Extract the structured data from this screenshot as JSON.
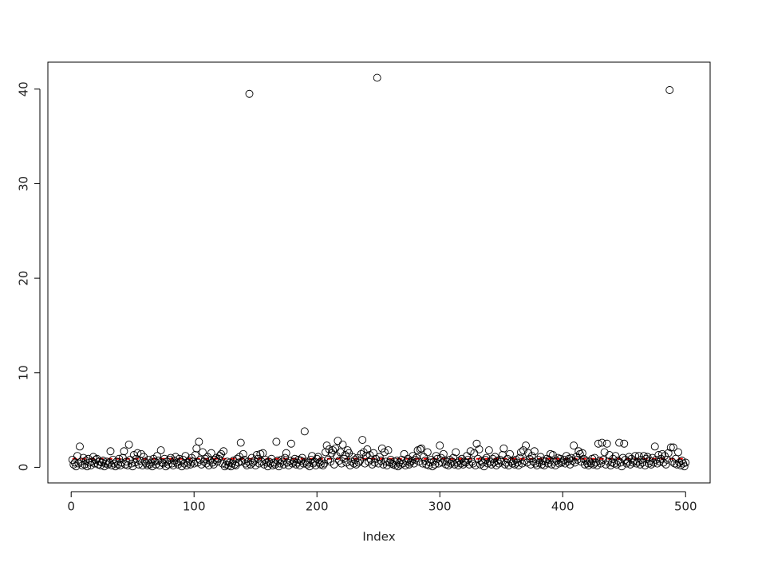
{
  "chart_data": {
    "type": "scatter",
    "x_label": "Index",
    "point_color": "#000000",
    "reference_line": {
      "value": 0.9,
      "color": "#ff0000"
    },
    "xlim": [
      -18.96,
      519.96
    ],
    "xticks": [
      0,
      100,
      200,
      300,
      400,
      500
    ],
    "ylim": [
      -1.65,
      42.85
    ],
    "yticks": [
      0,
      10,
      20,
      30,
      40
    ],
    "x": [
      1,
      2,
      3,
      4,
      5,
      6,
      7,
      8,
      9,
      10,
      11,
      12,
      13,
      14,
      15,
      16,
      17,
      18,
      19,
      20,
      21,
      22,
      23,
      24,
      25,
      26,
      27,
      28,
      29,
      30,
      31,
      32,
      33,
      34,
      35,
      36,
      37,
      38,
      39,
      40,
      41,
      42,
      43,
      44,
      45,
      46,
      47,
      48,
      49,
      50,
      51,
      52,
      53,
      54,
      55,
      56,
      57,
      58,
      59,
      60,
      61,
      62,
      63,
      64,
      65,
      66,
      67,
      68,
      69,
      70,
      71,
      72,
      73,
      74,
      75,
      76,
      77,
      78,
      79,
      80,
      81,
      82,
      83,
      84,
      85,
      86,
      87,
      88,
      89,
      90,
      91,
      92,
      93,
      94,
      95,
      96,
      97,
      98,
      99,
      100,
      101,
      102,
      103,
      104,
      105,
      106,
      107,
      108,
      109,
      110,
      111,
      112,
      113,
      114,
      115,
      116,
      117,
      118,
      119,
      120,
      121,
      122,
      123,
      124,
      125,
      126,
      127,
      128,
      129,
      130,
      131,
      132,
      133,
      134,
      135,
      136,
      137,
      138,
      139,
      140,
      141,
      142,
      143,
      144,
      145,
      146,
      147,
      148,
      149,
      150,
      151,
      152,
      153,
      154,
      155,
      156,
      157,
      158,
      159,
      160,
      161,
      162,
      163,
      164,
      165,
      166,
      167,
      168,
      169,
      170,
      171,
      172,
      173,
      174,
      175,
      176,
      177,
      178,
      179,
      180,
      181,
      182,
      183,
      184,
      185,
      186,
      187,
      188,
      189,
      190,
      191,
      192,
      193,
      194,
      195,
      196,
      197,
      198,
      199,
      200,
      201,
      202,
      203,
      204,
      205,
      206,
      207,
      208,
      209,
      210,
      211,
      212,
      213,
      214,
      215,
      216,
      217,
      218,
      219,
      220,
      221,
      222,
      223,
      224,
      225,
      226,
      227,
      228,
      229,
      230,
      231,
      232,
      233,
      234,
      235,
      236,
      237,
      238,
      239,
      240,
      241,
      242,
      243,
      244,
      245,
      246,
      247,
      248,
      249,
      250,
      251,
      252,
      253,
      254,
      255,
      256,
      257,
      258,
      259,
      260,
      261,
      262,
      263,
      264,
      265,
      266,
      267,
      268,
      269,
      270,
      271,
      272,
      273,
      274,
      275,
      276,
      277,
      278,
      279,
      280,
      281,
      282,
      283,
      284,
      285,
      286,
      287,
      288,
      289,
      290,
      291,
      292,
      293,
      294,
      295,
      296,
      297,
      298,
      299,
      300,
      301,
      302,
      303,
      304,
      305,
      306,
      307,
      308,
      309,
      310,
      311,
      312,
      313,
      314,
      315,
      316,
      317,
      318,
      319,
      320,
      321,
      322,
      323,
      324,
      325,
      326,
      327,
      328,
      329,
      330,
      331,
      332,
      333,
      334,
      335,
      336,
      337,
      338,
      339,
      340,
      341,
      342,
      343,
      344,
      345,
      346,
      347,
      348,
      349,
      350,
      351,
      352,
      353,
      354,
      355,
      356,
      357,
      358,
      359,
      360,
      361,
      362,
      363,
      364,
      365,
      366,
      367,
      368,
      369,
      370,
      371,
      372,
      373,
      374,
      375,
      376,
      377,
      378,
      379,
      380,
      381,
      382,
      383,
      384,
      385,
      386,
      387,
      388,
      389,
      390,
      391,
      392,
      393,
      394,
      395,
      396,
      397,
      398,
      399,
      400,
      401,
      402,
      403,
      404,
      405,
      406,
      407,
      408,
      409,
      410,
      411,
      412,
      413,
      414,
      415,
      416,
      417,
      418,
      419,
      420,
      421,
      422,
      423,
      424,
      425,
      426,
      427,
      428,
      429,
      430,
      431,
      432,
      433,
      434,
      435,
      436,
      437,
      438,
      439,
      440,
      441,
      442,
      443,
      444,
      445,
      446,
      447,
      448,
      449,
      450,
      451,
      452,
      453,
      454,
      455,
      456,
      457,
      458,
      459,
      460,
      461,
      462,
      463,
      464,
      465,
      466,
      467,
      468,
      469,
      470,
      471,
      472,
      473,
      474,
      475,
      476,
      477,
      478,
      479,
      480,
      481,
      482,
      483,
      484,
      485,
      486,
      487,
      488,
      489,
      490,
      491,
      492,
      493,
      494,
      495,
      496,
      497,
      498,
      499,
      500
    ],
    "values": [
      0.8,
      0.3,
      0.5,
      0.1,
      1.2,
      0.4,
      2.2,
      0.6,
      0.2,
      1.0,
      0.3,
      0.7,
      0.1,
      0.9,
      0.5,
      0.2,
      0.6,
      1.1,
      0.4,
      0.8,
      0.9,
      0.3,
      0.6,
      0.2,
      0.5,
      0.7,
      0.1,
      0.4,
      0.6,
      0.3,
      0.5,
      1.7,
      0.2,
      0.8,
      0.4,
      0.1,
      0.6,
      0.3,
      0.9,
      0.2,
      0.5,
      1.0,
      1.7,
      0.3,
      0.6,
      0.2,
      2.4,
      0.8,
      0.4,
      0.1,
      1.3,
      0.5,
      0.9,
      1.5,
      0.3,
      0.7,
      1.4,
      0.2,
      1.1,
      0.6,
      0.4,
      0.2,
      0.8,
      0.3,
      0.5,
      0.1,
      0.9,
      0.6,
      0.3,
      1.2,
      0.7,
      0.2,
      1.8,
      0.5,
      0.4,
      0.9,
      0.1,
      0.6,
      0.3,
      0.8,
      1.0,
      0.4,
      0.2,
      0.7,
      1.1,
      0.5,
      0.3,
      0.9,
      0.6,
      0.1,
      0.8,
      0.4,
      1.2,
      0.2,
      0.5,
      0.7,
      0.3,
      1.0,
      0.6,
      0.4,
      1.3,
      2.0,
      0.5,
      2.7,
      0.8,
      0.3,
      1.6,
      0.6,
      0.9,
      0.4,
      1.1,
      0.2,
      0.7,
      1.5,
      0.5,
      0.3,
      0.8,
      1.0,
      0.6,
      0.9,
      1.2,
      1.4,
      0.4,
      1.7,
      0.1,
      0.3,
      0.6,
      0.2,
      0.5,
      0.1,
      0.4,
      0.7,
      0.3,
      0.2,
      0.9,
      0.5,
      1.1,
      2.6,
      0.6,
      1.4,
      0.8,
      0.4,
      0.2,
      0.6,
      39.5,
      0.3,
      1.0,
      0.5,
      0.7,
      0.2,
      1.3,
      0.9,
      0.4,
      1.4,
      0.6,
      1.5,
      0.3,
      0.8,
      0.5,
      0.1,
      0.6,
      0.4,
      0.9,
      0.2,
      0.5,
      0.3,
      2.7,
      0.7,
      0.1,
      0.4,
      0.8,
      0.6,
      0.3,
      1.0,
      1.5,
      0.5,
      0.2,
      0.7,
      2.5,
      0.4,
      0.6,
      0.9,
      0.3,
      0.5,
      0.8,
      0.2,
      0.7,
      1.0,
      0.4,
      3.8,
      0.6,
      0.3,
      0.5,
      0.1,
      0.8,
      1.2,
      0.4,
      0.6,
      0.2,
      0.9,
      1.1,
      0.5,
      0.3,
      0.7,
      0.2,
      0.4,
      1.6,
      2.3,
      0.8,
      1.9,
      0.6,
      1.5,
      1.8,
      0.3,
      2.0,
      1.2,
      2.8,
      0.7,
      1.6,
      0.4,
      2.4,
      0.9,
      1.3,
      0.5,
      1.8,
      1.5,
      0.2,
      0.6,
      1.1,
      0.4,
      0.8,
      0.3,
      1.0,
      0.5,
      0.7,
      1.4,
      2.9,
      1.6,
      0.4,
      1.2,
      1.9,
      0.6,
      1.3,
      0.8,
      0.3,
      1.5,
      0.5,
      0.9,
      41.2,
      0.4,
      1.1,
      0.7,
      2.0,
      0.3,
      1.6,
      0.6,
      0.2,
      1.8,
      0.5,
      0.8,
      0.4,
      0.3,
      0.6,
      0.2,
      0.7,
      0.1,
      0.5,
      0.3,
      0.8,
      0.4,
      1.4,
      0.2,
      0.6,
      0.9,
      0.3,
      0.5,
      0.7,
      1.2,
      0.4,
      0.8,
      1.0,
      1.8,
      0.6,
      1.9,
      2.0,
      0.4,
      1.1,
      0.7,
      0.3,
      1.6,
      0.2,
      0.5,
      0.8,
      0.1,
      0.6,
      0.3,
      1.2,
      0.9,
      0.4,
      2.3,
      1.0,
      0.5,
      1.4,
      0.7,
      0.3,
      0.6,
      0.2,
      0.8,
      0.4,
      0.6,
      1.0,
      0.3,
      1.6,
      0.5,
      0.2,
      0.7,
      0.4,
      0.9,
      0.3,
      0.6,
      0.5,
      1.2,
      0.8,
      0.3,
      1.7,
      0.6,
      0.4,
      1.5,
      0.2,
      2.5,
      0.9,
      1.9,
      0.3,
      0.7,
      0.5,
      0.1,
      0.8,
      1.0,
      0.4,
      1.8,
      0.6,
      0.3,
      0.9,
      0.5,
      1.1,
      0.2,
      0.7,
      0.4,
      0.8,
      0.6,
      1.3,
      2.0,
      0.3,
      0.5,
      0.9,
      0.2,
      1.4,
      0.6,
      0.4,
      0.7,
      0.3,
      0.8,
      0.5,
      0.2,
      1.0,
      1.6,
      0.4,
      1.8,
      0.7,
      2.3,
      0.5,
      1.5,
      0.9,
      0.3,
      1.2,
      0.6,
      1.7,
      0.4,
      0.2,
      0.8,
      0.5,
      1.1,
      0.3,
      0.7,
      0.2,
      0.6,
      0.9,
      0.4,
      0.8,
      1.4,
      0.3,
      1.3,
      0.6,
      0.2,
      0.7,
      1.0,
      0.4,
      0.9,
      0.5,
      0.6,
      0.8,
      0.4,
      1.2,
      0.6,
      0.9,
      0.3,
      1.0,
      0.7,
      2.3,
      0.5,
      1.1,
      0.8,
      1.7,
      1.4,
      0.6,
      1.5,
      0.9,
      0.3,
      0.7,
      0.4,
      0.2,
      0.6,
      0.4,
      0.9,
      0.3,
      1.0,
      0.5,
      0.2,
      2.5,
      0.7,
      0.4,
      2.6,
      0.8,
      1.6,
      0.3,
      2.5,
      0.6,
      1.3,
      0.2,
      0.5,
      0.9,
      0.4,
      1.2,
      0.3,
      0.7,
      2.6,
      0.5,
      0.1,
      1.0,
      2.5,
      0.8,
      0.4,
      0.6,
      1.1,
      0.3,
      0.9,
      0.5,
      0.7,
      1.2,
      0.4,
      0.6,
      1.2,
      0.3,
      0.8,
      0.5,
      1.2,
      0.2,
      0.9,
      1.1,
      0.4,
      0.7,
      0.3,
      1.0,
      0.5,
      2.2,
      0.8,
      0.4,
      1.3,
      0.6,
      0.9,
      1.4,
      0.5,
      1.2,
      0.3,
      0.8,
      1.5,
      39.9,
      2.1,
      0.6,
      2.1,
      0.4,
      0.9,
      0.3,
      1.6,
      0.5,
      0.2,
      0.7,
      0.4,
      0.1,
      0.5
    ]
  }
}
